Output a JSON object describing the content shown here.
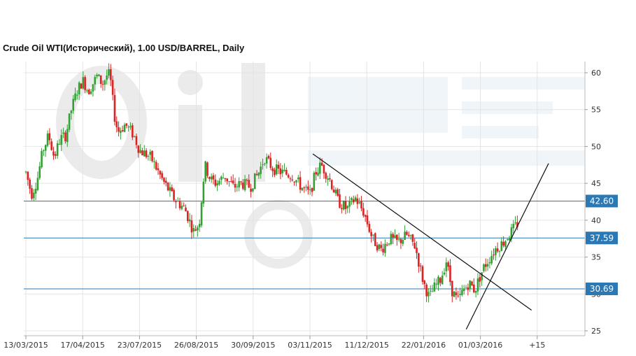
{
  "chart_data": {
    "type": "candlestick",
    "title": "Crude Oil WTI(Исторический), 1.00 USD/BARREL, Daily",
    "xlabel": "",
    "ylabel": "",
    "ylim": [
      25,
      61
    ],
    "grid": true,
    "y_ticks": [
      60,
      55,
      50,
      45,
      40,
      35,
      30,
      25
    ],
    "x_ticks": [
      "13/03/2015",
      "17/04/2015",
      "23/07/2015",
      "26/08/2015",
      "30/09/2015",
      "03/11/2015",
      "11/12/2015",
      "22/01/2016",
      "01/03/2016",
      "+15"
    ],
    "x_tick_positions": [
      0,
      1,
      2,
      3,
      4,
      5,
      6,
      7,
      8,
      9
    ],
    "close_path": [
      [
        0.0,
        46.5
      ],
      [
        0.1,
        43.5
      ],
      [
        0.2,
        45.5
      ],
      [
        0.3,
        49.5
      ],
      [
        0.4,
        51.5
      ],
      [
        0.5,
        48.5
      ],
      [
        0.6,
        51.0
      ],
      [
        0.7,
        51.5
      ],
      [
        0.8,
        55.0
      ],
      [
        0.9,
        57.5
      ],
      [
        1.0,
        59.0
      ],
      [
        1.1,
        57.5
      ],
      [
        1.25,
        59.5
      ],
      [
        1.35,
        58.5
      ],
      [
        1.45,
        60.0
      ],
      [
        1.5,
        58.5
      ],
      [
        1.55,
        54.5
      ],
      [
        1.62,
        52.0
      ],
      [
        1.75,
        53.0
      ],
      [
        1.9,
        51.5
      ],
      [
        2.0,
        49.5
      ],
      [
        2.2,
        48.5
      ],
      [
        2.4,
        45.5
      ],
      [
        2.6,
        43.0
      ],
      [
        2.8,
        41.5
      ],
      [
        2.95,
        38.5
      ],
      [
        3.05,
        39.5
      ],
      [
        3.15,
        47.5
      ],
      [
        3.25,
        45.5
      ],
      [
        3.35,
        45.0
      ],
      [
        3.5,
        46.0
      ],
      [
        3.65,
        44.5
      ],
      [
        3.8,
        45.0
      ],
      [
        3.95,
        44.5
      ],
      [
        4.1,
        46.5
      ],
      [
        4.2,
        48.5
      ],
      [
        4.35,
        47.0
      ],
      [
        4.5,
        46.5
      ],
      [
        4.7,
        46.0
      ],
      [
        4.85,
        44.5
      ],
      [
        5.0,
        43.5
      ],
      [
        5.1,
        46.5
      ],
      [
        5.2,
        47.5
      ],
      [
        5.35,
        45.5
      ],
      [
        5.5,
        42.5
      ],
      [
        5.65,
        41.5
      ],
      [
        5.8,
        43.0
      ],
      [
        5.95,
        41.0
      ],
      [
        6.1,
        37.5
      ],
      [
        6.25,
        36.0
      ],
      [
        6.4,
        37.5
      ],
      [
        6.55,
        37.0
      ],
      [
        6.7,
        38.0
      ],
      [
        6.85,
        36.5
      ],
      [
        7.0,
        31.5
      ],
      [
        7.1,
        29.5
      ],
      [
        7.2,
        31.0
      ],
      [
        7.3,
        32.0
      ],
      [
        7.4,
        34.5
      ],
      [
        7.5,
        30.5
      ],
      [
        7.6,
        29.0
      ],
      [
        7.7,
        30.5
      ],
      [
        7.8,
        31.5
      ],
      [
        7.9,
        30.5
      ],
      [
        8.05,
        33.5
      ],
      [
        8.25,
        36.0
      ],
      [
        8.4,
        37.0
      ],
      [
        8.55,
        38.5
      ],
      [
        8.65,
        39.5
      ]
    ],
    "annotations": {
      "horizontal_levels": [
        {
          "value": 42.6,
          "label": "42.60"
        },
        {
          "value": 37.59,
          "label": "37.59"
        },
        {
          "value": 30.69,
          "label": "30.69"
        }
      ],
      "trendlines": [
        {
          "from": [
            5.05,
            49.0
          ],
          "to": [
            8.9,
            27.8
          ]
        },
        {
          "from": [
            7.75,
            25.2
          ],
          "to": [
            9.2,
            47.7
          ]
        }
      ]
    },
    "colors": {
      "up": "#33a033",
      "down": "#dd2222",
      "level_line": "#2a78b4",
      "badge": "#2a78b4",
      "trendline": "#111111",
      "grid": "#e4e4e4"
    }
  }
}
